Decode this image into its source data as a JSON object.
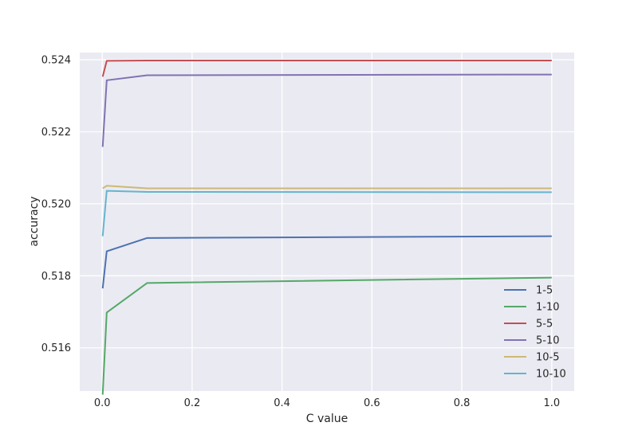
{
  "chart_data": {
    "type": "line",
    "title": "",
    "xlabel": "C value",
    "ylabel": "accuracy",
    "xlim": [
      -0.05,
      1.05
    ],
    "ylim": [
      0.5148,
      0.5242
    ],
    "xticks": [
      0.0,
      0.2,
      0.4,
      0.6,
      0.8,
      1.0
    ],
    "xtick_labels": [
      "0.0",
      "0.2",
      "0.4",
      "0.6",
      "0.8",
      "1.0"
    ],
    "yticks": [
      0.516,
      0.518,
      0.52,
      0.522,
      0.524
    ],
    "ytick_labels": [
      "0.516",
      "0.518",
      "0.520",
      "0.522",
      "0.524"
    ],
    "grid": true,
    "legend_position": "lower-right",
    "x": [
      0.001,
      0.01,
      0.1,
      1.0
    ],
    "series": [
      {
        "name": "1-5",
        "color": "#4c72b0",
        "values": [
          0.51765,
          0.51868,
          0.51905,
          0.5191
        ]
      },
      {
        "name": "1-10",
        "color": "#55a868",
        "values": [
          0.5147,
          0.51698,
          0.5178,
          0.51795
        ]
      },
      {
        "name": "5-5",
        "color": "#c44e52",
        "values": [
          0.52353,
          0.52397,
          0.52398,
          0.52398
        ]
      },
      {
        "name": "5-10",
        "color": "#8172b2",
        "values": [
          0.52158,
          0.52343,
          0.52357,
          0.52359
        ]
      },
      {
        "name": "10-5",
        "color": "#ccb974",
        "values": [
          0.52043,
          0.5205,
          0.52043,
          0.52043
        ]
      },
      {
        "name": "10-10",
        "color": "#64b5cd",
        "values": [
          0.5191,
          0.52036,
          0.52033,
          0.52032
        ]
      }
    ]
  }
}
